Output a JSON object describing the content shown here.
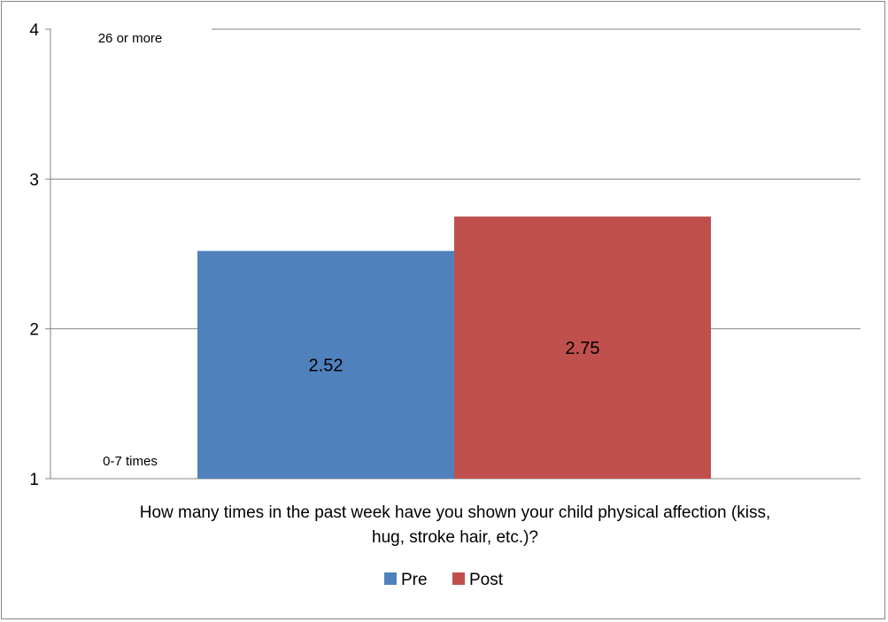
{
  "chart_data": {
    "type": "bar",
    "categories": [
      "How many times in the past week have you shown your child physical affection (kiss, hug, stroke hair, etc.)?"
    ],
    "category_lines": [
      "How many times in the past week have you shown your child physical affection (kiss,",
      "hug, stroke hair, etc.)?"
    ],
    "series": [
      {
        "name": "Pre",
        "values": [
          2.52
        ],
        "color": "#4f81bd"
      },
      {
        "name": "Post",
        "values": [
          2.75
        ],
        "color": "#c0504d"
      }
    ],
    "data_labels": [
      "2.52",
      "2.75"
    ],
    "ylim": [
      1,
      4
    ],
    "yticks": [
      1,
      2,
      3,
      4
    ],
    "grid": true,
    "legend_position": "bottom",
    "annotations": [
      {
        "text": "26 or more",
        "y": 4
      },
      {
        "text": "0-7 times",
        "y": 1
      }
    ],
    "title": "",
    "xlabel": "",
    "ylabel": ""
  }
}
